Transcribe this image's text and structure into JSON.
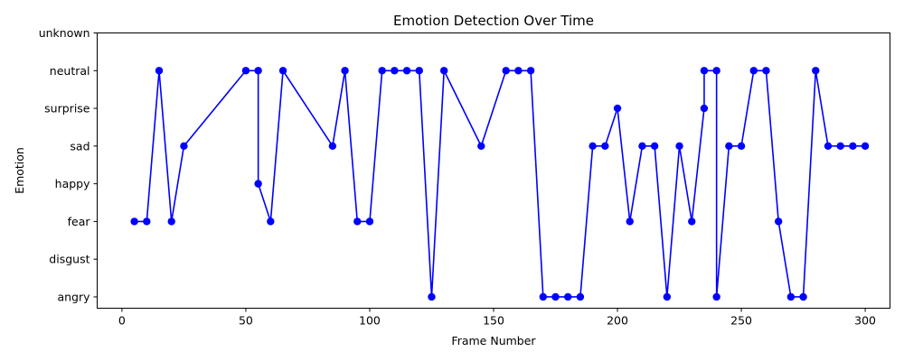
{
  "chart_data": {
    "type": "line",
    "title": "Emotion Detection Over Time",
    "xlabel": "Frame Number",
    "ylabel": "Emotion",
    "xlim": [
      -10,
      310
    ],
    "x_ticks": [
      0,
      50,
      100,
      150,
      200,
      250,
      300
    ],
    "categories_y": [
      "angry",
      "disgust",
      "fear",
      "happy",
      "sad",
      "surprise",
      "neutral",
      "unknown"
    ],
    "ylim": [
      -0.3,
      7.0
    ],
    "grid": false,
    "legend": "none",
    "line_color": "#0000ff",
    "marker": "circle",
    "series": [
      {
        "x": [
          5,
          10,
          15,
          20,
          25,
          50,
          55,
          55,
          60,
          65,
          85,
          90,
          95,
          100,
          105,
          110,
          115,
          120,
          125,
          130,
          145,
          155,
          160,
          165,
          170,
          175,
          180,
          185,
          190,
          195,
          200,
          205,
          210,
          215,
          220,
          225,
          230,
          235,
          235,
          240,
          240,
          245,
          250,
          255,
          260,
          265,
          270,
          275,
          280,
          285,
          290,
          295,
          300
        ],
        "y": [
          "fear",
          "fear",
          "neutral",
          "fear",
          "sad",
          "neutral",
          "neutral",
          "happy",
          "fear",
          "neutral",
          "sad",
          "neutral",
          "fear",
          "fear",
          "neutral",
          "neutral",
          "neutral",
          "neutral",
          "angry",
          "neutral",
          "sad",
          "neutral",
          "neutral",
          "neutral",
          "angry",
          "angry",
          "angry",
          "angry",
          "sad",
          "sad",
          "surprise",
          "fear",
          "sad",
          "sad",
          "angry",
          "sad",
          "fear",
          "surprise",
          "neutral",
          "neutral",
          "angry",
          "sad",
          "sad",
          "neutral",
          "neutral",
          "fear",
          "angry",
          "angry",
          "neutral",
          "sad",
          "sad",
          "sad",
          "sad"
        ]
      }
    ]
  }
}
